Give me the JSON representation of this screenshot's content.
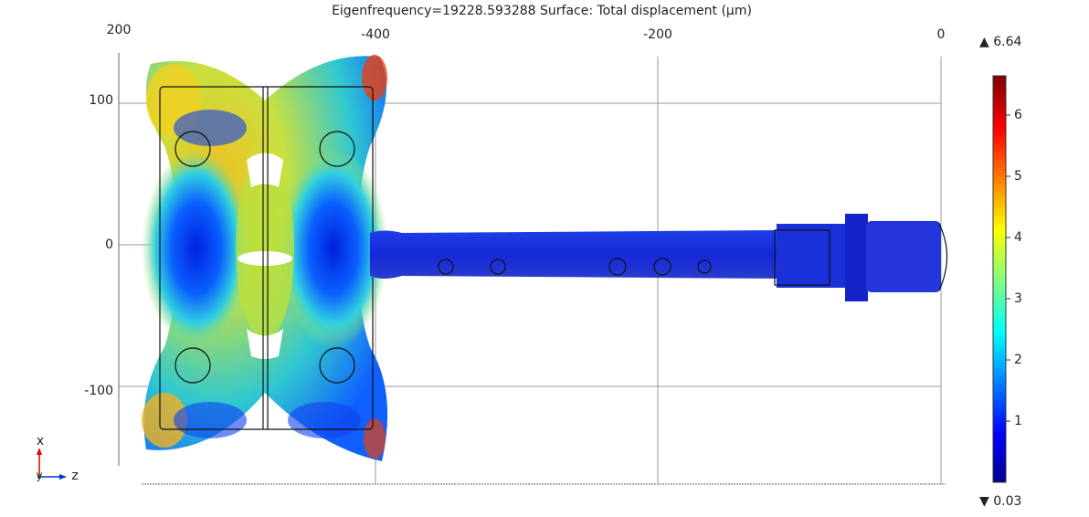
{
  "plot": {
    "title": "Eigenfrequency=19228.593288   Surface: Total displacement (µm)",
    "x_ticks": [
      "-400",
      "-200",
      "0"
    ],
    "y_ticks": [
      "100",
      "0",
      "-100"
    ],
    "corner_label": "200",
    "colorbar": {
      "max_label": "▲ 6.64",
      "min_label": "▼ 0.03",
      "ticks": [
        "1",
        "2",
        "3",
        "4",
        "5",
        "6"
      ]
    },
    "triad": {
      "x": "x",
      "y": "y",
      "z": "z"
    }
  }
}
